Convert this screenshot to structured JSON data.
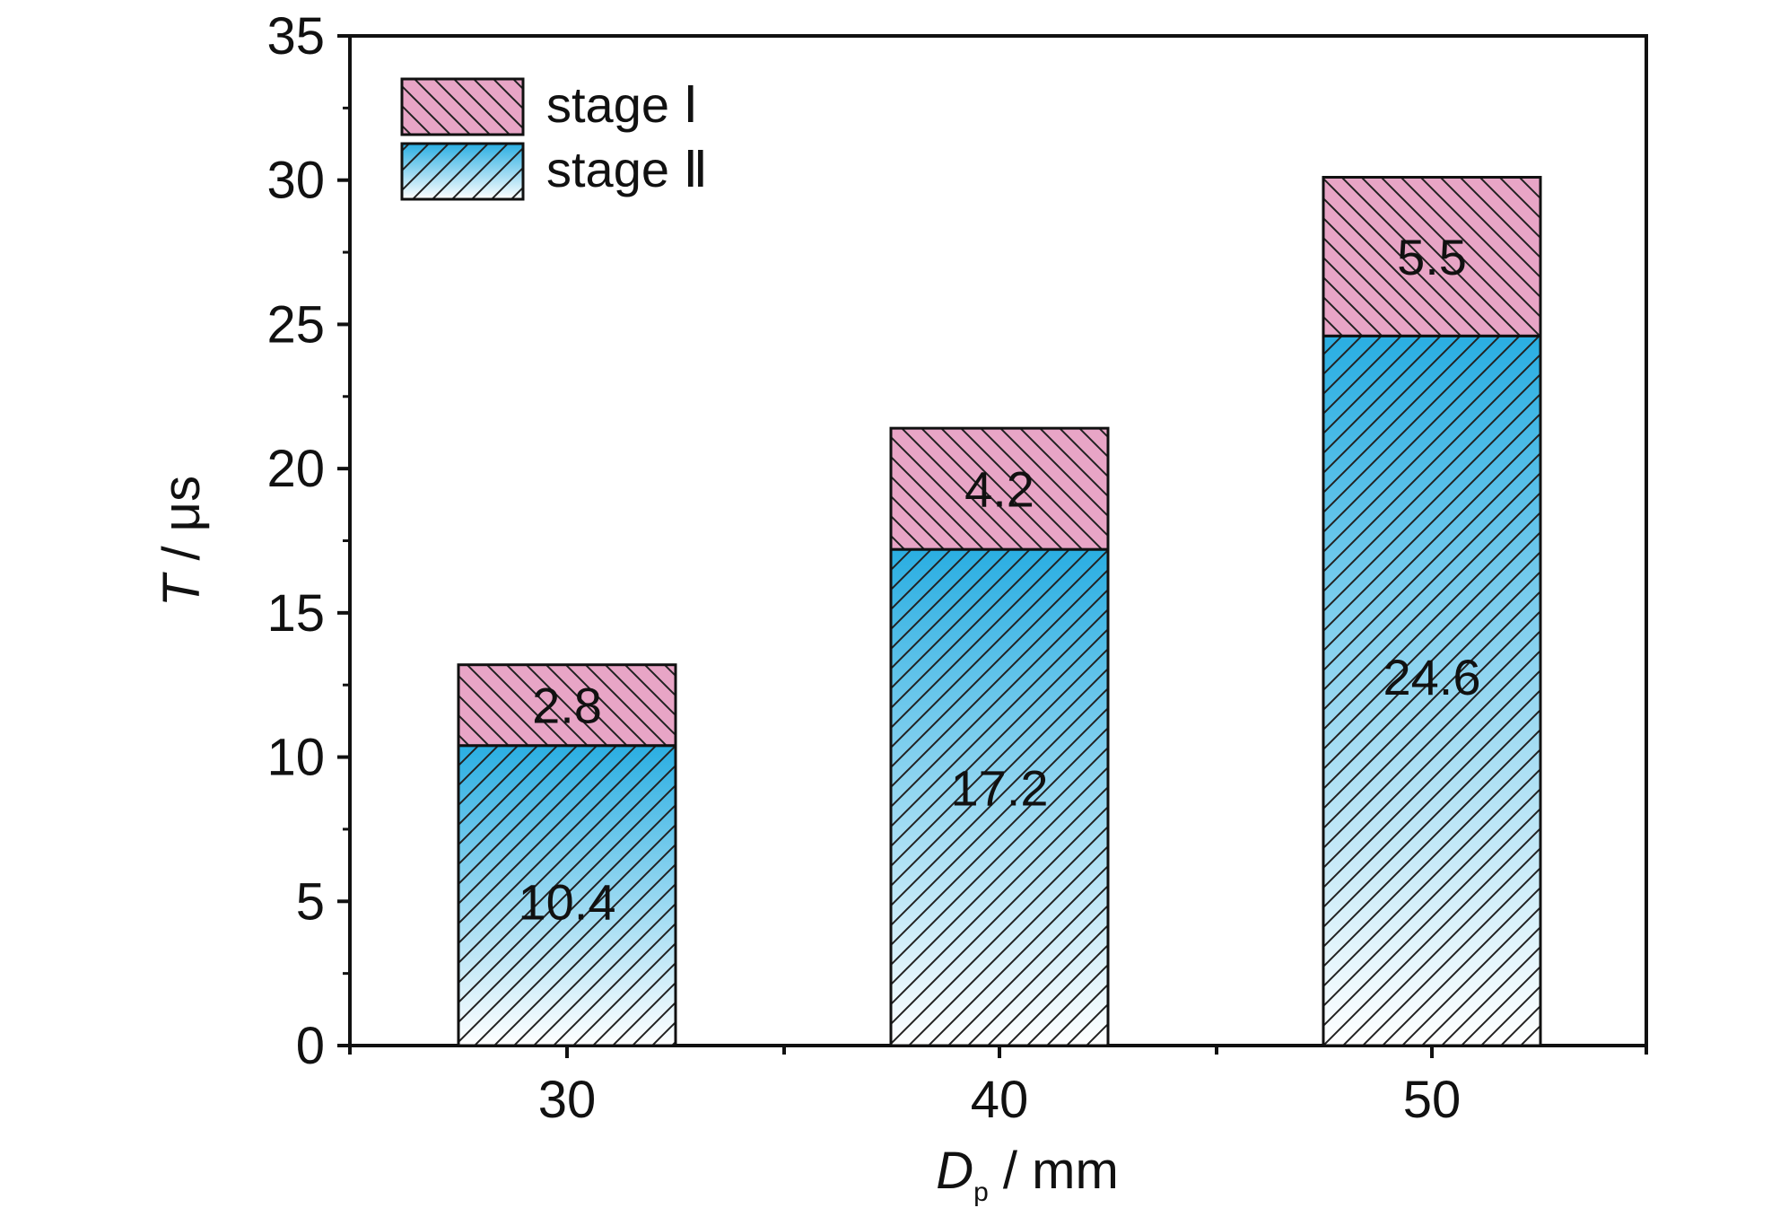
{
  "chart_data": {
    "type": "bar",
    "stacked": true,
    "xlabel": {
      "main": "D",
      "sub": "p",
      "unit": " / mm"
    },
    "ylabel": {
      "main": "T",
      "unit": " / μs"
    },
    "categories": [
      "30",
      "40",
      "50"
    ],
    "ylim": [
      0,
      35
    ],
    "y_ticks": [
      0,
      5,
      10,
      15,
      20,
      25,
      30,
      35
    ],
    "series": [
      {
        "name": "stage Ⅱ",
        "values": [
          10.4,
          17.2,
          24.6
        ],
        "labels": [
          "10.4",
          "17.2",
          "24.6"
        ],
        "color_top": "#2aaee2",
        "color_bottom": "#ffffff"
      },
      {
        "name": "stage Ⅰ",
        "values": [
          2.8,
          4.2,
          5.5
        ],
        "labels": [
          "2.8",
          "4.2",
          "5.5"
        ],
        "color": "#e8a5c6"
      }
    ],
    "legend": {
      "position": "top-left"
    },
    "grid": false
  }
}
